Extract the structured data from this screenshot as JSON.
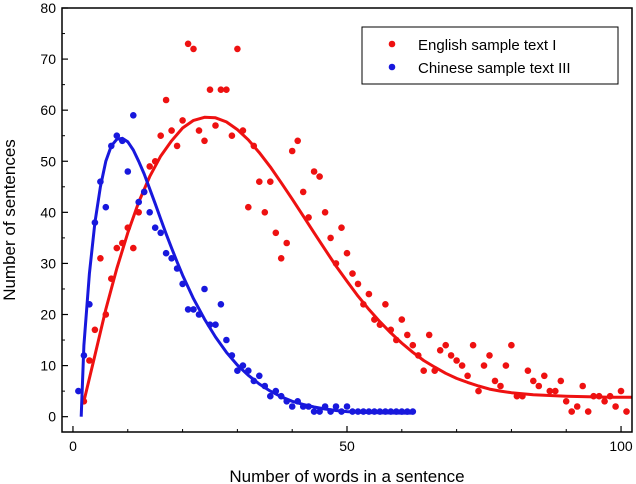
{
  "chart_data": {
    "type": "scatter",
    "xlabel": "Number of words in a sentence",
    "ylabel": "Number of sentences",
    "xlim": [
      -2,
      102
    ],
    "ylim": [
      -3,
      80
    ],
    "xticks": [
      0,
      50,
      100
    ],
    "yticks": [
      0,
      10,
      20,
      30,
      40,
      50,
      60,
      70,
      80
    ],
    "grid": false,
    "legend_position": "top-right",
    "series": [
      {
        "name": "English sample text I",
        "color": "#ee1111",
        "marker": "circle",
        "points": [
          [
            2,
            3
          ],
          [
            3,
            11
          ],
          [
            4,
            17
          ],
          [
            5,
            31
          ],
          [
            6,
            20
          ],
          [
            7,
            27
          ],
          [
            8,
            33
          ],
          [
            9,
            34
          ],
          [
            10,
            37
          ],
          [
            11,
            33
          ],
          [
            12,
            40
          ],
          [
            13,
            44
          ],
          [
            14,
            49
          ],
          [
            15,
            50
          ],
          [
            16,
            55
          ],
          [
            17,
            62
          ],
          [
            18,
            56
          ],
          [
            19,
            53
          ],
          [
            20,
            58
          ],
          [
            21,
            73
          ],
          [
            22,
            72
          ],
          [
            23,
            56
          ],
          [
            24,
            54
          ],
          [
            25,
            64
          ],
          [
            26,
            57
          ],
          [
            27,
            64
          ],
          [
            28,
            64
          ],
          [
            29,
            55
          ],
          [
            30,
            72
          ],
          [
            31,
            56
          ],
          [
            32,
            41
          ],
          [
            33,
            53
          ],
          [
            34,
            46
          ],
          [
            35,
            40
          ],
          [
            36,
            46
          ],
          [
            37,
            36
          ],
          [
            38,
            31
          ],
          [
            39,
            34
          ],
          [
            40,
            52
          ],
          [
            41,
            54
          ],
          [
            42,
            44
          ],
          [
            43,
            39
          ],
          [
            44,
            48
          ],
          [
            45,
            47
          ],
          [
            46,
            40
          ],
          [
            47,
            35
          ],
          [
            48,
            30
          ],
          [
            49,
            37
          ],
          [
            50,
            32
          ],
          [
            51,
            28
          ],
          [
            52,
            26
          ],
          [
            53,
            22
          ],
          [
            54,
            24
          ],
          [
            55,
            19
          ],
          [
            56,
            18
          ],
          [
            57,
            22
          ],
          [
            58,
            17
          ],
          [
            59,
            15
          ],
          [
            60,
            19
          ],
          [
            61,
            16
          ],
          [
            62,
            14
          ],
          [
            63,
            12
          ],
          [
            64,
            9
          ],
          [
            65,
            16
          ],
          [
            66,
            9
          ],
          [
            67,
            13
          ],
          [
            68,
            14
          ],
          [
            69,
            12
          ],
          [
            70,
            11
          ],
          [
            71,
            10
          ],
          [
            72,
            8
          ],
          [
            73,
            14
          ],
          [
            74,
            5
          ],
          [
            75,
            10
          ],
          [
            76,
            12
          ],
          [
            77,
            7
          ],
          [
            78,
            6
          ],
          [
            79,
            10
          ],
          [
            80,
            14
          ],
          [
            81,
            4
          ],
          [
            82,
            4
          ],
          [
            83,
            9
          ],
          [
            84,
            7
          ],
          [
            85,
            6
          ],
          [
            86,
            8
          ],
          [
            87,
            5
          ],
          [
            88,
            5
          ],
          [
            89,
            7
          ],
          [
            90,
            3
          ],
          [
            91,
            1
          ],
          [
            92,
            2
          ],
          [
            93,
            6
          ],
          [
            94,
            1
          ],
          [
            95,
            4
          ],
          [
            96,
            4
          ],
          [
            97,
            3
          ],
          [
            98,
            4
          ],
          [
            99,
            2
          ],
          [
            100,
            5
          ],
          [
            101,
            1
          ]
        ],
        "fit": [
          [
            2,
            3
          ],
          [
            4,
            12
          ],
          [
            6,
            21
          ],
          [
            8,
            29
          ],
          [
            10,
            36
          ],
          [
            12,
            42
          ],
          [
            14,
            47
          ],
          [
            16,
            51
          ],
          [
            18,
            54
          ],
          [
            20,
            56.5
          ],
          [
            22,
            58
          ],
          [
            24,
            58.6
          ],
          [
            26,
            58.5
          ],
          [
            28,
            57.7
          ],
          [
            30,
            56.2
          ],
          [
            32,
            54.2
          ],
          [
            34,
            51.7
          ],
          [
            36,
            48.9
          ],
          [
            38,
            45.8
          ],
          [
            40,
            42.6
          ],
          [
            42,
            39.3
          ],
          [
            44,
            36
          ],
          [
            46,
            32.7
          ],
          [
            48,
            29.5
          ],
          [
            50,
            26.5
          ],
          [
            52,
            23.6
          ],
          [
            54,
            21
          ],
          [
            56,
            18.6
          ],
          [
            58,
            16.4
          ],
          [
            60,
            14.4
          ],
          [
            62,
            12.6
          ],
          [
            64,
            11
          ],
          [
            66,
            9.7
          ],
          [
            68,
            8.5
          ],
          [
            70,
            7.5
          ],
          [
            72,
            6.7
          ],
          [
            74,
            6
          ],
          [
            76,
            5.4
          ],
          [
            78,
            5
          ],
          [
            80,
            4.7
          ],
          [
            82,
            4.5
          ],
          [
            84,
            4.3
          ],
          [
            86,
            4.2
          ],
          [
            88,
            4.1
          ],
          [
            90,
            4
          ],
          [
            92,
            3.95
          ],
          [
            94,
            3.9
          ],
          [
            96,
            3.85
          ],
          [
            98,
            3.8
          ],
          [
            100,
            3.8
          ],
          [
            102,
            3.8
          ]
        ]
      },
      {
        "name": "Chinese sample text III",
        "color": "#1818dd",
        "marker": "circle",
        "points": [
          [
            1,
            5
          ],
          [
            2,
            12
          ],
          [
            3,
            22
          ],
          [
            4,
            38
          ],
          [
            5,
            46
          ],
          [
            6,
            41
          ],
          [
            7,
            53
          ],
          [
            8,
            55
          ],
          [
            9,
            54
          ],
          [
            10,
            48
          ],
          [
            11,
            59
          ],
          [
            12,
            42
          ],
          [
            13,
            44
          ],
          [
            14,
            40
          ],
          [
            15,
            37
          ],
          [
            16,
            36
          ],
          [
            17,
            32
          ],
          [
            18,
            31
          ],
          [
            19,
            29
          ],
          [
            20,
            26
          ],
          [
            21,
            21
          ],
          [
            22,
            21
          ],
          [
            23,
            20
          ],
          [
            24,
            25
          ],
          [
            25,
            18
          ],
          [
            26,
            18
          ],
          [
            27,
            22
          ],
          [
            28,
            15
          ],
          [
            29,
            12
          ],
          [
            30,
            9
          ],
          [
            31,
            10
          ],
          [
            32,
            9
          ],
          [
            33,
            7
          ],
          [
            34,
            8
          ],
          [
            35,
            6
          ],
          [
            36,
            4
          ],
          [
            37,
            5
          ],
          [
            38,
            4
          ],
          [
            39,
            3
          ],
          [
            40,
            2
          ],
          [
            41,
            3
          ],
          [
            42,
            2
          ],
          [
            43,
            2
          ],
          [
            44,
            1
          ],
          [
            45,
            1
          ],
          [
            46,
            2
          ],
          [
            47,
            1
          ],
          [
            48,
            2
          ],
          [
            49,
            1
          ],
          [
            50,
            2
          ],
          [
            51,
            1
          ],
          [
            52,
            1
          ],
          [
            53,
            1
          ],
          [
            54,
            1
          ],
          [
            55,
            1
          ],
          [
            56,
            1
          ],
          [
            57,
            1
          ],
          [
            58,
            1
          ],
          [
            59,
            1
          ],
          [
            60,
            1
          ],
          [
            61,
            1
          ],
          [
            62,
            1
          ]
        ],
        "fit": [
          [
            1.5,
            0
          ],
          [
            2,
            14
          ],
          [
            3,
            28
          ],
          [
            4,
            38
          ],
          [
            5,
            45
          ],
          [
            6,
            50
          ],
          [
            7,
            53
          ],
          [
            8,
            54.3
          ],
          [
            9,
            54.5
          ],
          [
            10,
            53.8
          ],
          [
            11,
            52.2
          ],
          [
            12,
            50
          ],
          [
            13,
            47.5
          ],
          [
            14,
            44.6
          ],
          [
            15,
            41.7
          ],
          [
            16,
            38.7
          ],
          [
            17,
            35.8
          ],
          [
            18,
            33
          ],
          [
            19,
            30.3
          ],
          [
            20,
            27.7
          ],
          [
            22,
            23.1
          ],
          [
            24,
            19.1
          ],
          [
            26,
            15.6
          ],
          [
            28,
            12.6
          ],
          [
            30,
            10.1
          ],
          [
            32,
            8.1
          ],
          [
            34,
            6.4
          ],
          [
            36,
            5
          ],
          [
            38,
            3.9
          ],
          [
            40,
            3
          ],
          [
            42,
            2.4
          ],
          [
            44,
            1.9
          ],
          [
            46,
            1.5
          ],
          [
            48,
            1.2
          ],
          [
            50,
            1
          ],
          [
            52,
            0.85
          ],
          [
            54,
            0.8
          ],
          [
            56,
            0.75
          ],
          [
            58,
            0.72
          ],
          [
            60,
            0.7
          ],
          [
            62,
            0.7
          ]
        ]
      }
    ]
  }
}
